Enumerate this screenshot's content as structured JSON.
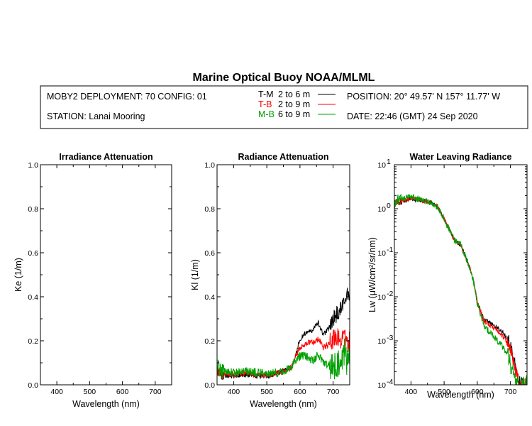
{
  "header": {
    "title": "Marine Optical Buoy NOAA/MLML",
    "deployment": "MOBY2 DEPLOYMENT: 70 CONFIG: 01",
    "station": "STATION: Lanai Mooring",
    "position": "POSITION: 20° 49.57' N   157° 11.77' W",
    "date": "DATE: 22:46 (GMT) 24 Sep 2020",
    "legend": [
      {
        "code": "T-M",
        "range": "2 to 6  m",
        "color": "#000000"
      },
      {
        "code": "T-B",
        "range": "2 to 9  m",
        "color": "#ff0000"
      },
      {
        "code": "M-B",
        "range": "6 to 9  m",
        "color": "#00a000"
      }
    ]
  },
  "chart_data": [
    {
      "type": "line",
      "title": "Irradiance Attenuation",
      "xlabel": "Wavelength (nm)",
      "ylabel": "Ke  (1/m)",
      "xlim": [
        350,
        750
      ],
      "ylim": [
        0,
        1
      ],
      "xticks": [
        "400",
        "500",
        "600",
        "700"
      ],
      "yticks": [
        "0.0",
        "0.2",
        "0.4",
        "0.6",
        "0.8",
        "1.0"
      ],
      "series": []
    },
    {
      "type": "line",
      "title": "Radiance Attenuation",
      "xlabel": "Wavelength (nm)",
      "ylabel": "Kl  (1/m)",
      "xlim": [
        350,
        750
      ],
      "ylim": [
        0,
        1
      ],
      "xticks": [
        "400",
        "500",
        "600",
        "700"
      ],
      "yticks": [
        "0.0",
        "0.2",
        "0.4",
        "0.6",
        "0.8",
        "1.0"
      ],
      "series": [
        {
          "name": "T-M",
          "color": "#000000",
          "noise": 0.012,
          "x": [
            350,
            360,
            380,
            400,
            420,
            450,
            480,
            500,
            520,
            550,
            575,
            585,
            600,
            620,
            640,
            655,
            670,
            685,
            700,
            715,
            725,
            735,
            742,
            750
          ],
          "y": [
            0.06,
            0.045,
            0.04,
            0.042,
            0.045,
            0.045,
            0.04,
            0.038,
            0.05,
            0.06,
            0.08,
            0.12,
            0.21,
            0.24,
            0.25,
            0.28,
            0.23,
            0.25,
            0.3,
            0.33,
            0.35,
            0.37,
            0.42,
            0.38
          ]
        },
        {
          "name": "T-B",
          "color": "#ff0000",
          "noise": 0.014,
          "x": [
            350,
            360,
            380,
            400,
            420,
            450,
            480,
            500,
            520,
            550,
            575,
            585,
            600,
            620,
            640,
            655,
            670,
            685,
            700,
            715,
            725,
            735,
            742,
            750
          ],
          "y": [
            0.07,
            0.055,
            0.045,
            0.047,
            0.052,
            0.052,
            0.046,
            0.043,
            0.05,
            0.06,
            0.08,
            0.12,
            0.17,
            0.19,
            0.19,
            0.21,
            0.17,
            0.18,
            0.21,
            0.22,
            0.2,
            0.22,
            0.18,
            0.2
          ]
        },
        {
          "name": "M-B",
          "color": "#00a000",
          "noise": 0.02,
          "x": [
            350,
            360,
            380,
            400,
            420,
            450,
            480,
            500,
            520,
            550,
            575,
            585,
            600,
            620,
            640,
            655,
            670,
            685,
            700,
            715,
            725,
            735,
            742,
            750
          ],
          "y": [
            0.09,
            0.06,
            0.055,
            0.057,
            0.062,
            0.06,
            0.055,
            0.05,
            0.055,
            0.06,
            0.08,
            0.11,
            0.13,
            0.13,
            0.11,
            0.14,
            0.1,
            0.09,
            0.08,
            0.1,
            0.12,
            0.15,
            0.1,
            0.12
          ]
        }
      ]
    },
    {
      "type": "line",
      "title": "Water Leaving Radiance",
      "xlabel": "Wavelength (nm)",
      "ylabel": "Lw  (μW/cm²/sr/nm)",
      "xlim": [
        350,
        750
      ],
      "ylim": [
        0.0001,
        10
      ],
      "yscale": "log",
      "xticks": [
        "400",
        "500",
        "600",
        "700"
      ],
      "yticks": [
        "10-4",
        "10-3",
        "10-2",
        "10-1",
        "100",
        "101"
      ],
      "series": [
        {
          "name": "T-M",
          "color": "#000000",
          "noise": 0.05,
          "x": [
            350,
            360,
            380,
            400,
            420,
            440,
            460,
            480,
            500,
            510,
            520,
            530,
            550,
            565,
            580,
            590,
            600,
            620,
            640,
            660,
            680,
            700,
            710,
            720,
            730,
            740,
            750
          ],
          "y": [
            1.2,
            1.4,
            1.5,
            1.7,
            1.6,
            1.5,
            1.4,
            1.1,
            0.6,
            0.4,
            0.3,
            0.2,
            0.15,
            0.08,
            0.04,
            0.02,
            0.008,
            0.003,
            0.0025,
            0.002,
            0.0015,
            0.0008,
            0.0004,
            0.0002,
            0.0001,
            0.00012,
            0.0001
          ]
        },
        {
          "name": "T-B",
          "color": "#ff0000",
          "noise": 0.05,
          "x": [
            350,
            360,
            380,
            400,
            420,
            440,
            460,
            480,
            500,
            510,
            520,
            530,
            550,
            565,
            580,
            590,
            600,
            620,
            640,
            660,
            680,
            700,
            710,
            720,
            730,
            740,
            750
          ],
          "y": [
            1.25,
            1.45,
            1.55,
            1.75,
            1.65,
            1.5,
            1.4,
            1.1,
            0.6,
            0.4,
            0.3,
            0.2,
            0.15,
            0.08,
            0.04,
            0.02,
            0.008,
            0.0028,
            0.0022,
            0.0017,
            0.0012,
            0.0006,
            0.0003,
            0.00015,
            0.0001,
            0.0001,
            0.0001
          ]
        },
        {
          "name": "M-B",
          "color": "#00a000",
          "noise": 0.07,
          "x": [
            350,
            360,
            380,
            400,
            420,
            440,
            460,
            480,
            500,
            510,
            520,
            530,
            550,
            565,
            580,
            590,
            600,
            620,
            640,
            660,
            680,
            700,
            710,
            720,
            730,
            740,
            750
          ],
          "y": [
            1.3,
            1.6,
            1.7,
            1.9,
            1.7,
            1.5,
            1.4,
            1.1,
            0.6,
            0.4,
            0.3,
            0.2,
            0.15,
            0.08,
            0.04,
            0.02,
            0.007,
            0.0022,
            0.0015,
            0.001,
            0.0007,
            0.0003,
            0.00015,
            0.0001,
            0.0001,
            0.0001,
            0.0001
          ]
        }
      ]
    }
  ]
}
